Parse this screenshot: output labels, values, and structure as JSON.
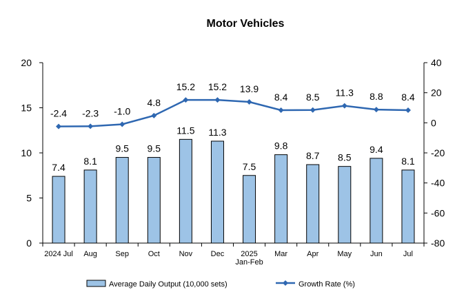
{
  "chart_data": {
    "type": "bar+line",
    "title": "Motor Vehicles",
    "categories": [
      [
        "2024 Jul"
      ],
      [
        "Aug"
      ],
      [
        "Sep"
      ],
      [
        "Oct"
      ],
      [
        "Nov"
      ],
      [
        "Dec"
      ],
      [
        "2025",
        "Jan-Feb"
      ],
      [
        "Mar"
      ],
      [
        "Apr"
      ],
      [
        "May"
      ],
      [
        "Jun"
      ],
      [
        "Jul"
      ]
    ],
    "left_axis": {
      "min": 0,
      "max": 20,
      "ticks": [
        0,
        5,
        10,
        15,
        20
      ]
    },
    "right_axis": {
      "min": -80,
      "max": 40,
      "ticks": [
        -80,
        -60,
        -40,
        -20,
        0,
        20,
        40
      ]
    },
    "grid": false,
    "legend_position": "bottom",
    "series": [
      {
        "name": "Average Daily Output (10,000 sets)",
        "kind": "bar",
        "axis": "left",
        "color": "#9DC3E6",
        "border_color": "#000000",
        "values": [
          7.4,
          8.1,
          9.5,
          9.5,
          11.5,
          11.3,
          7.5,
          9.8,
          8.7,
          8.5,
          9.4,
          8.1
        ],
        "labels": [
          "7.4",
          "8.1",
          "9.5",
          "9.5",
          "11.5",
          "11.3",
          "7.5",
          "9.8",
          "8.7",
          "8.5",
          "9.4",
          "8.1"
        ]
      },
      {
        "name": "Growth Rate (%)",
        "kind": "line",
        "axis": "right",
        "color": "#2E67B1",
        "marker": "diamond",
        "values": [
          -2.4,
          -2.3,
          -1.0,
          4.8,
          15.2,
          15.2,
          13.9,
          8.4,
          8.5,
          11.3,
          8.8,
          8.4
        ],
        "labels": [
          "-2.4",
          "-2.3",
          "-1.0",
          "4.8",
          "15.2",
          "15.2",
          "13.9",
          "8.4",
          "8.5",
          "11.3",
          "8.8",
          "8.4"
        ]
      }
    ]
  }
}
